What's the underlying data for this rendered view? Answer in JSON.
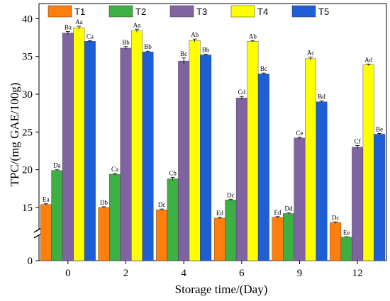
{
  "chart_data": {
    "type": "bar",
    "xlabel": "Storage time/(Day)",
    "ylabel": "TPC/(mg GAE/100g)",
    "categories": [
      "0",
      "2",
      "4",
      "6",
      "9",
      "12"
    ],
    "y_ticks": [
      "0",
      "15",
      "20",
      "25",
      "30",
      "35",
      "40"
    ],
    "axis_break": true,
    "ylim": [
      0,
      42
    ],
    "legend_position": "top",
    "series": [
      {
        "name": "T1",
        "color": "#ff7f0e",
        "values": [
          15.4,
          15.0,
          14.7,
          13.6,
          13.7,
          13.0
        ],
        "errors": [
          0.1,
          0.1,
          0.1,
          0.1,
          0.1,
          0.1
        ],
        "labels": [
          "Ea",
          "Db",
          "Dc",
          "Ed",
          "Ed",
          "Dc"
        ]
      },
      {
        "name": "T2",
        "color": "#3cb043",
        "values": [
          19.9,
          19.4,
          18.8,
          16.0,
          14.2,
          11.4
        ],
        "errors": [
          0.1,
          0.1,
          0.2,
          0.1,
          0.1,
          0.1
        ],
        "labels": [
          "Da",
          "Ca",
          "Cb",
          "Dc",
          "Dd",
          "Ee"
        ]
      },
      {
        "name": "T3",
        "color": "#8064a2",
        "values": [
          38.1,
          36.1,
          34.4,
          29.5,
          24.2,
          23.0
        ],
        "errors": [
          0.2,
          0.2,
          0.4,
          0.2,
          0.1,
          0.2
        ],
        "labels": [
          "Ba",
          "Bb",
          "Bc",
          "Cd",
          "Ce",
          "Cf"
        ]
      },
      {
        "name": "T4",
        "color": "#ffff00",
        "values": [
          38.8,
          38.4,
          37.1,
          37.0,
          34.7,
          33.9
        ],
        "errors": [
          0.2,
          0.2,
          0.2,
          0.1,
          0.2,
          0.1
        ],
        "labels": [
          "Aa",
          "Aa",
          "Ab",
          "Ab",
          "Ac",
          "Ad"
        ]
      },
      {
        "name": "T5",
        "color": "#1f5fd6",
        "values": [
          37.0,
          35.6,
          35.2,
          32.7,
          29.0,
          24.7
        ],
        "errors": [
          0.1,
          0.1,
          0.1,
          0.1,
          0.1,
          0.1
        ],
        "labels": [
          "Ca",
          "Bb",
          "Bb",
          "Bc",
          "Bd",
          "Be"
        ]
      }
    ]
  }
}
